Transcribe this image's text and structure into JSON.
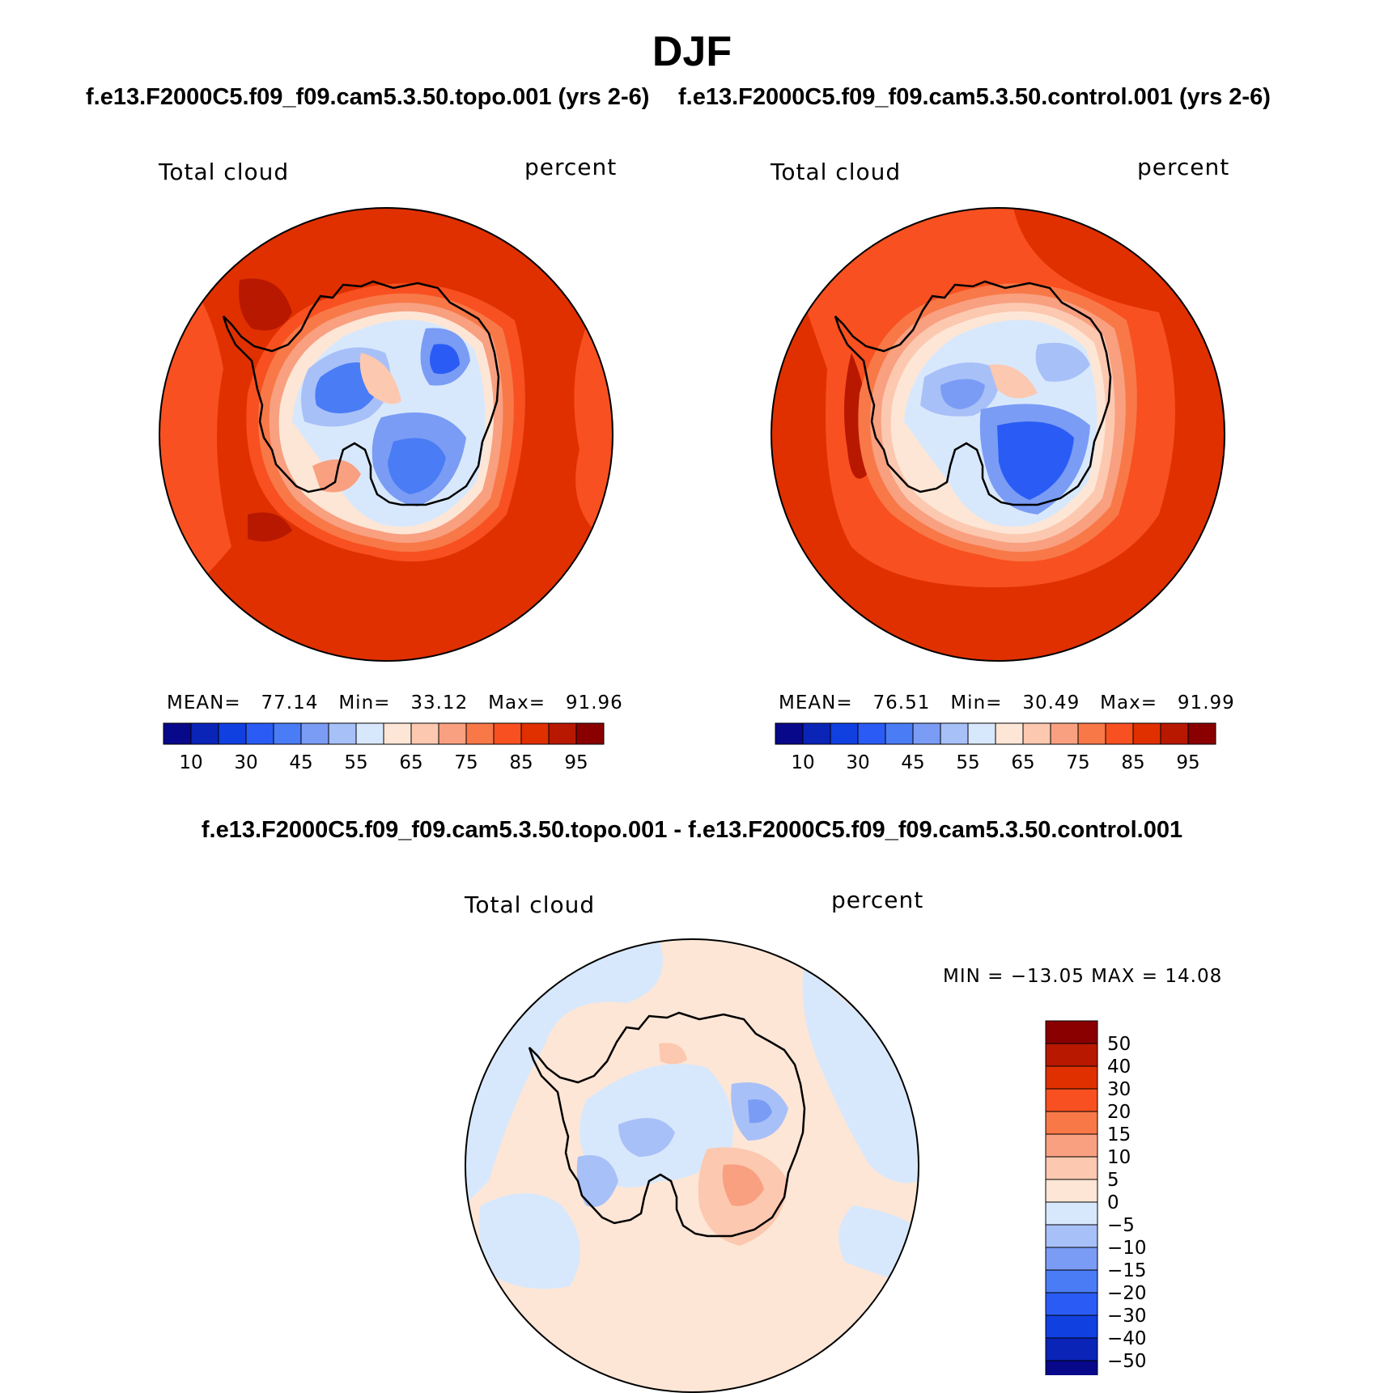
{
  "title": "DJF",
  "panels": [
    {
      "case_title": "f.e13.F2000C5.f09_f09.cam5.3.50.topo.001 (yrs 2-6)",
      "left_label": "Total cloud",
      "right_label": "percent",
      "stats": {
        "mean_label": "MEAN=",
        "mean": "77.14",
        "min_label": "Min=",
        "min": "33.12",
        "max_label": "Max=",
        "max": "91.96"
      }
    },
    {
      "case_title": "f.e13.F2000C5.f09_f09.cam5.3.50.control.001 (yrs 2-6)",
      "left_label": "Total cloud",
      "right_label": "percent",
      "stats": {
        "mean_label": "MEAN=",
        "mean": "76.51",
        "min_label": "Min=",
        "min": "30.49",
        "max_label": "Max=",
        "max": "91.99"
      }
    }
  ],
  "diff_panel": {
    "case_title": "f.e13.F2000C5.f09_f09.cam5.3.50.topo.001 - f.e13.F2000C5.f09_f09.cam5.3.50.control.001",
    "left_label": "Total cloud",
    "right_label": "percent",
    "minmax_text": "MIN = −13.05 MAX =   14.08"
  },
  "colorbar_abs": {
    "colors": [
      "#08088a",
      "#0a24b8",
      "#1040e0",
      "#2a5cf5",
      "#4a7cf5",
      "#7a9cf5",
      "#a8c0f8",
      "#d8e8fc",
      "#fde6d6",
      "#fcc8b0",
      "#f8a080",
      "#f87848",
      "#f85020",
      "#e03000",
      "#b81800",
      "#8a0000"
    ],
    "tick_labels": [
      "10",
      "30",
      "45",
      "55",
      "65",
      "75",
      "85",
      "95"
    ]
  },
  "colorbar_diff": {
    "colors": [
      "#8a0000",
      "#b81800",
      "#e03000",
      "#f85020",
      "#f87848",
      "#f8a080",
      "#fcc8b0",
      "#fde6d6",
      "#d8e8fc",
      "#a8c0f8",
      "#7a9cf5",
      "#4a7cf5",
      "#2a5cf5",
      "#1040e0",
      "#0a24b8",
      "#08088a"
    ],
    "tick_labels": [
      "50",
      "40",
      "30",
      "20",
      "15",
      "10",
      "5",
      "0",
      "−5",
      "−10",
      "−15",
      "−20",
      "−30",
      "−40",
      "−50"
    ]
  },
  "map_colors": {
    "ocean_high": "#e03000",
    "ocean_mid": "#f85020",
    "ocean_dark": "#b81800",
    "ring_1": "#f87848",
    "ring_2": "#f8a080",
    "ring_3": "#fcc8b0",
    "ice_white": "#fde6d6",
    "blue_1": "#d8e8fc",
    "blue_2": "#a8c0f8",
    "blue_3": "#7a9cf5",
    "blue_4": "#4a7cf5",
    "blue_5": "#2a5cf5",
    "diff_pos": "#fde6d6",
    "diff_neg": "#d8e8fc",
    "diff_neg2": "#a8c0f8",
    "diff_pos2": "#fcc8b0",
    "diff_pos3": "#f8a080"
  }
}
